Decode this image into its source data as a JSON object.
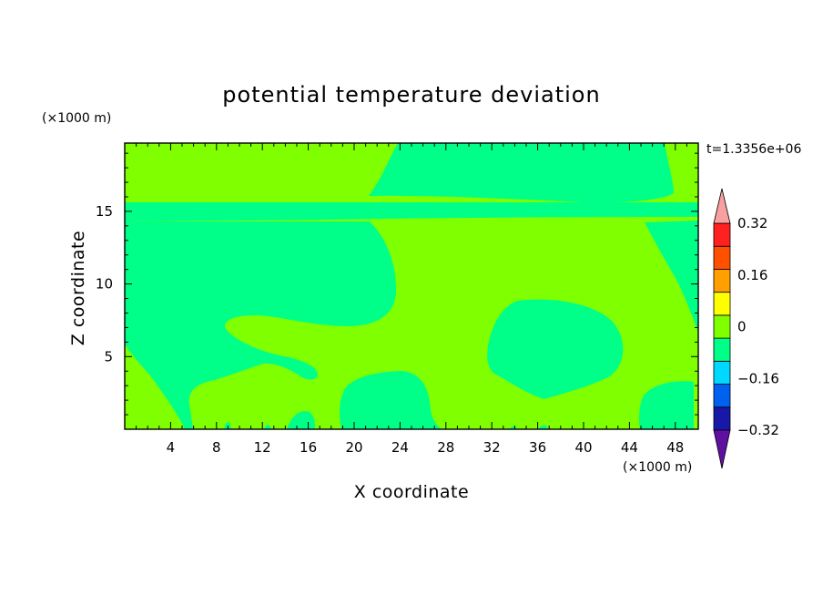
{
  "chart_data": {
    "type": "heatmap",
    "title": "potential temperature deviation",
    "xlabel": "X coordinate",
    "ylabel": "Z coordinate",
    "x_unit": "(×1000 m)",
    "y_unit": "(×1000 m)",
    "time_label": "t=1.3356e+06",
    "xlim": [
      0,
      50
    ],
    "ylim": [
      0,
      19.7
    ],
    "x_ticks": [
      "4",
      "8",
      "12",
      "16",
      "20",
      "24",
      "28",
      "32",
      "36",
      "40",
      "44",
      "48"
    ],
    "y_ticks": [
      "5",
      "10",
      "15"
    ],
    "x_tick_values": [
      4,
      8,
      12,
      16,
      20,
      24,
      28,
      32,
      36,
      40,
      44,
      48
    ],
    "y_tick_values": [
      5,
      10,
      15
    ],
    "colorbar": {
      "labels": [
        "0.32",
        "0.16",
        "0",
        "−0.16",
        "−0.32"
      ],
      "label_values": [
        0.32,
        0.16,
        0,
        -0.16,
        -0.32
      ],
      "levels": [
        -0.4,
        -0.32,
        -0.24,
        -0.16,
        -0.08,
        0,
        0.08,
        0.16,
        0.24,
        0.32,
        0.4
      ],
      "colors": [
        "#6010a0",
        "#1818a8",
        "#0060f0",
        "#00d8ff",
        "#00ff88",
        "#80ff00",
        "#ffff00",
        "#ffa000",
        "#ff5000",
        "#ff2020",
        "#f8a0a0"
      ]
    },
    "regions": [
      {
        "level": "0 to 0.08",
        "color": "#80ff00",
        "description": "background field"
      },
      {
        "level": "-0.08 to 0",
        "color": "#00ff88",
        "description": "negative deviation patches"
      }
    ],
    "grid": false
  }
}
